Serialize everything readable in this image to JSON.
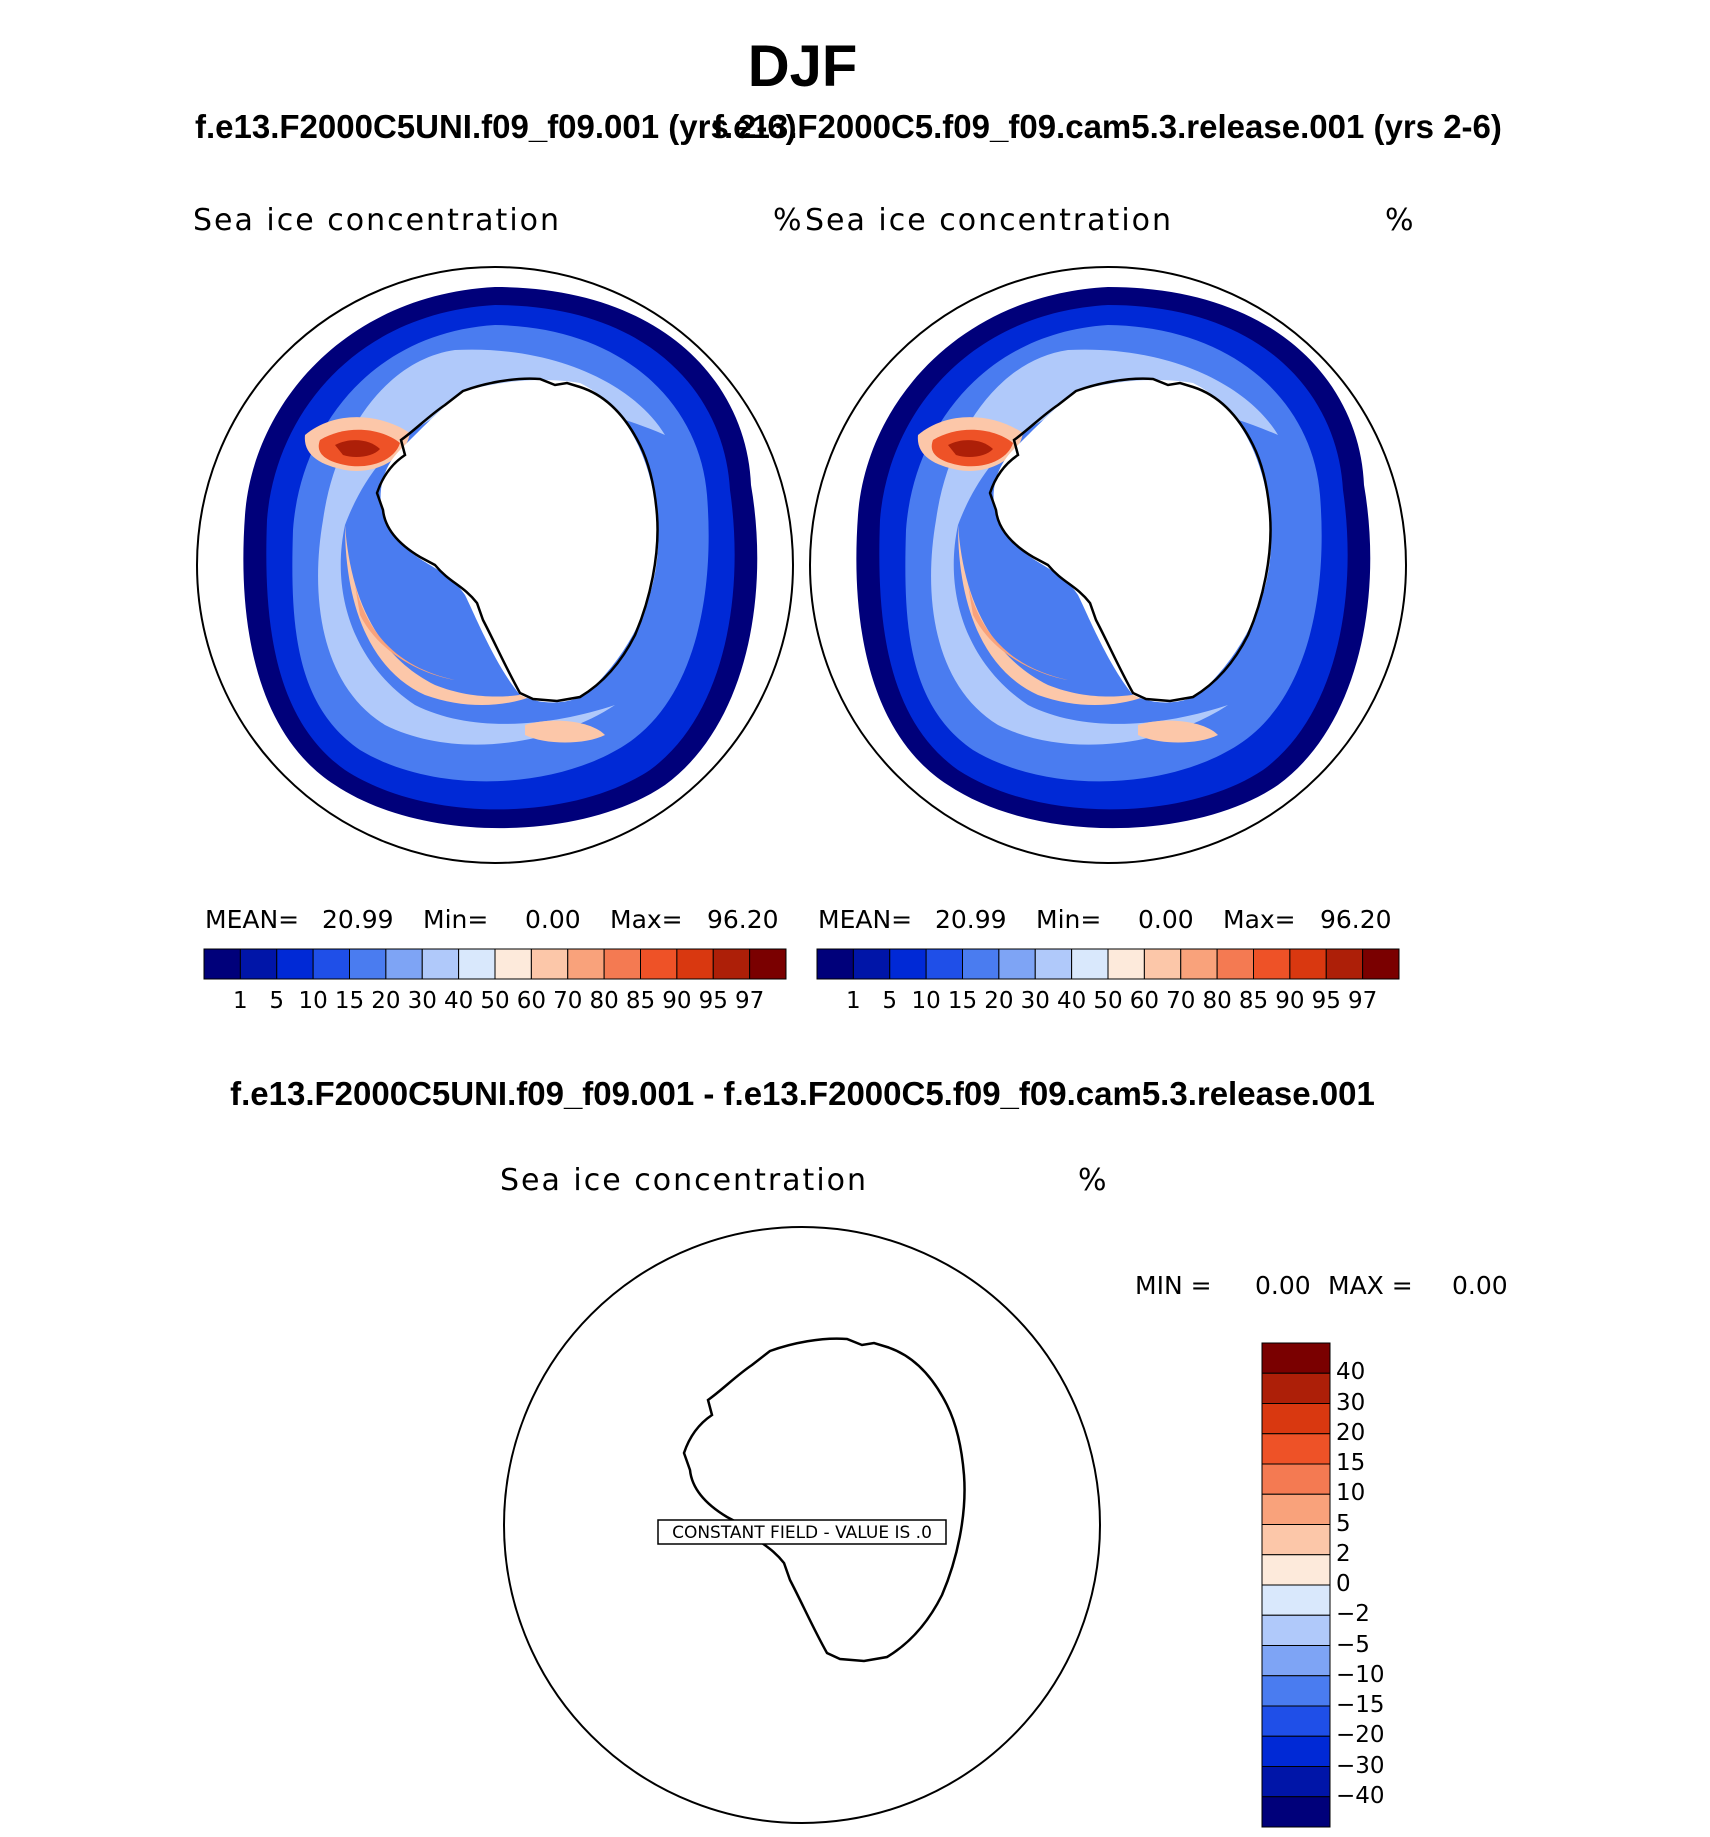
{
  "figure": {
    "season": "DJF",
    "case_a_title": "f.e13.F2000C5UNI.f09_f09.001 (yrs 2-6)",
    "case_b_title": "f.e13.F2000C5.f09_f09.cam5.3.release.001 (yrs 2-6)",
    "diff_title": "f.e13.F2000C5UNI.f09_f09.001 - f.e13.F2000C5.f09_f09.cam5.3.release.001"
  },
  "panels": [
    {
      "variable": "Sea ice concentration",
      "units": "%",
      "mean_label": "MEAN=",
      "mean_value": "20.99",
      "min_label": "Min=",
      "min_value": "0.00",
      "max_label": "Max=",
      "max_value": "96.20"
    },
    {
      "variable": "Sea ice concentration",
      "units": "%",
      "mean_label": "MEAN=",
      "mean_value": "20.99",
      "min_label": "Min=",
      "min_value": "0.00",
      "max_label": "Max=",
      "max_value": "96.20"
    }
  ],
  "diff_panel": {
    "variable": "Sea ice concentration",
    "units": "%",
    "min_label": "MIN =",
    "min_value": "0.00",
    "max_label": "MAX =",
    "max_value": "0.00",
    "constant_field_note": "CONSTANT FIELD - VALUE IS .0"
  },
  "colorbar_levels": [
    "1",
    "5",
    "10",
    "15",
    "20",
    "30",
    "40",
    "50",
    "60",
    "70",
    "80",
    "85",
    "90",
    "95",
    "97"
  ],
  "colorbar_colors": [
    "#00007a",
    "#0015a8",
    "#0029d6",
    "#1f4fe8",
    "#4a7cf0",
    "#7ea4f5",
    "#b0c9fa",
    "#d9e8fc",
    "#fdeadb",
    "#fcc7a9",
    "#f9a27b",
    "#f47a52",
    "#ee5227",
    "#d93810",
    "#ad1f08",
    "#7a0000"
  ],
  "diff_levels": [
    "40",
    "30",
    "20",
    "15",
    "10",
    "5",
    "2",
    "0",
    "−2",
    "−5",
    "−10",
    "−15",
    "−20",
    "−30",
    "−40"
  ],
  "diff_colors": [
    "#7a0000",
    "#ad1f08",
    "#d93810",
    "#ee5227",
    "#f47a52",
    "#f9a27b",
    "#fcc7a9",
    "#fdeadb",
    "#d9e8fc",
    "#b0c9fa",
    "#7ea4f5",
    "#4a7cf0",
    "#1f4fe8",
    "#0029d6",
    "#0015a8",
    "#00007a"
  ]
}
